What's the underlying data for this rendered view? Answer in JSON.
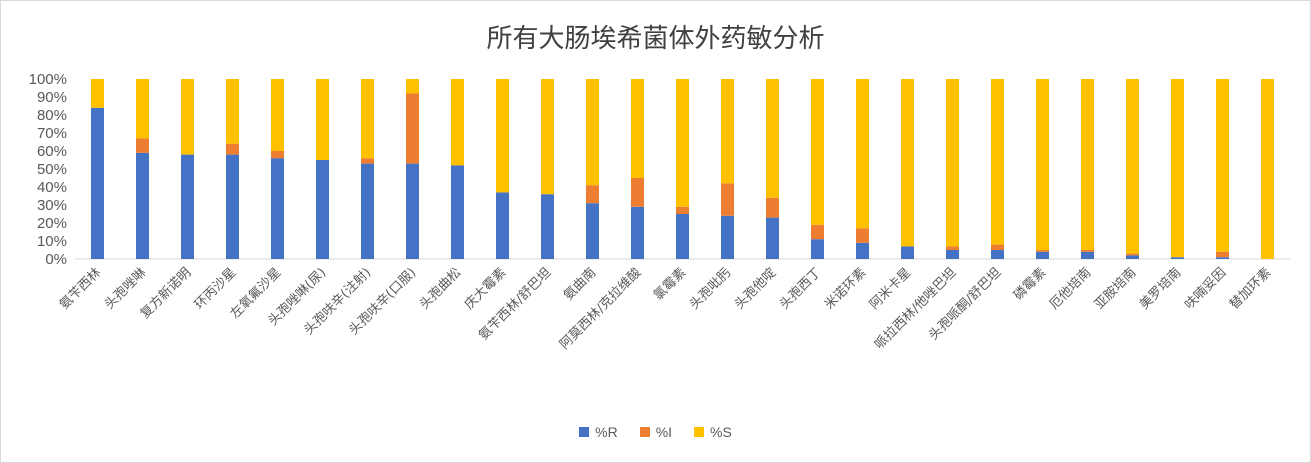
{
  "chart_data": {
    "type": "bar",
    "stacked": true,
    "title": "所有大肠埃希菌体外药敏分析",
    "categories": [
      "氨苄西林",
      "头孢唑啉",
      "复方新诺明",
      "环丙沙星",
      "左氧氟沙星",
      "头孢唑啉(尿)",
      "头孢呋辛(注射)",
      "头孢呋辛(口服)",
      "头孢曲松",
      "庆大霉素",
      "氨苄西林/舒巴坦",
      "氨曲南",
      "阿莫西林/克拉维酸",
      "氯霉素",
      "头孢吡肟",
      "头孢他啶",
      "头孢西丁",
      "米诺环素",
      "阿米卡星",
      "哌拉西林/他唑巴坦",
      "头孢哌酮/舒巴坦",
      "磷霉素",
      "厄他培南",
      "亚胺培南",
      "美罗培南",
      "呋喃妥因",
      "替加环素"
    ],
    "series": [
      {
        "name": "%R",
        "color": "#4472c4",
        "values": [
          84,
          59,
          58,
          58,
          56,
          55,
          53,
          53,
          52,
          37,
          36,
          31,
          29,
          25,
          24,
          23,
          11,
          9,
          7,
          5,
          5,
          4,
          4,
          2,
          1,
          1,
          0
        ]
      },
      {
        "name": "%I",
        "color": "#ed7d31",
        "values": [
          0,
          8,
          0,
          6,
          4,
          0,
          3,
          39,
          0,
          0,
          0,
          10,
          16,
          4,
          18,
          11,
          8,
          8,
          0,
          2,
          3,
          1,
          1,
          1,
          0,
          3,
          0
        ]
      },
      {
        "name": "%S",
        "color": "#ffc000",
        "values": [
          16,
          33,
          42,
          36,
          40,
          45,
          44,
          8,
          48,
          63,
          64,
          59,
          55,
          71,
          58,
          66,
          81,
          83,
          93,
          93,
          92,
          95,
          95,
          97,
          99,
          96,
          100
        ]
      }
    ],
    "y_ticks": [
      "0%",
      "10%",
      "20%",
      "30%",
      "40%",
      "50%",
      "60%",
      "70%",
      "80%",
      "90%",
      "100%"
    ],
    "ylim": [
      0,
      100
    ],
    "grid": false,
    "legend_position": "bottom"
  }
}
